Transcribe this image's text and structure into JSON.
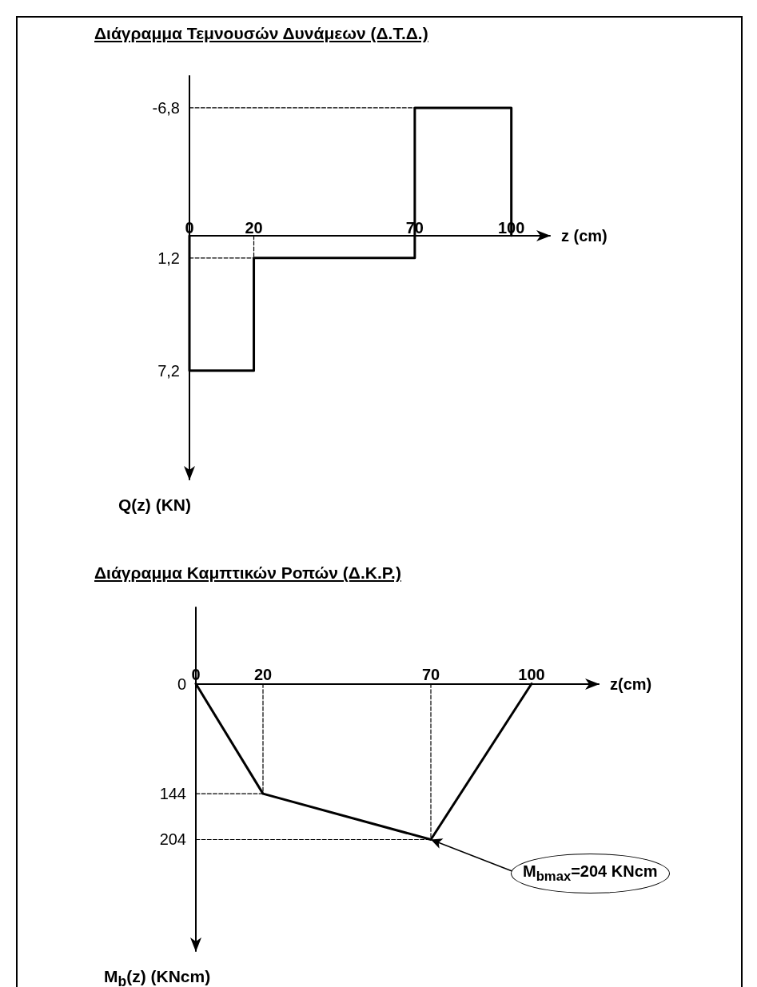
{
  "chart_data": [
    {
      "type": "line",
      "title": "Διάγραμμα Τεμνουσών Δυνάμεων (Δ.Τ.Δ.)",
      "xlabel": "z (cm)",
      "ylabel": "Q(z) (KN)",
      "marker": "none",
      "grid": false,
      "xlim": [
        0,
        112
      ],
      "xticks": [
        0,
        20,
        70,
        100
      ],
      "ylim": [
        13,
        -8.5
      ],
      "yticks": [
        {
          "value": -6.8,
          "label": "-6,8"
        },
        {
          "value": 1.2,
          "label": "1,2"
        },
        {
          "value": 7.2,
          "label": "7,2"
        }
      ],
      "series": [
        {
          "color": "#000000",
          "line_style": "solid",
          "x": [
            0,
            0,
            20,
            20,
            70,
            70,
            100,
            100
          ],
          "values": [
            0,
            7.2,
            7.2,
            1.2,
            1.2,
            -6.8,
            -6.8,
            0
          ]
        },
        {
          "color": "#000000",
          "line_style": "dashed",
          "x": [
            0,
            20
          ],
          "values": [
            1.2,
            1.2
          ]
        },
        {
          "color": "#000000",
          "line_style": "dashed",
          "x": [
            20,
            20
          ],
          "values": [
            0,
            1.2
          ]
        },
        {
          "color": "#000000",
          "line_style": "dashed",
          "x": [
            0,
            70
          ],
          "values": [
            -6.8,
            -6.8
          ]
        }
      ]
    },
    {
      "type": "line",
      "title": "Διάγραμμα Καμπτικών Ροπών (Δ.Κ.Ρ.)",
      "xlabel": "z(cm)",
      "ylabel": "M$_{b}$(z) (KNcm)",
      "marker": "none",
      "grid": false,
      "xlim": [
        0,
        120
      ],
      "xticks": [
        0,
        20,
        70,
        100
      ],
      "ylim": [
        350,
        -100
      ],
      "yticks": [
        0,
        144,
        204
      ],
      "annotations": [
        {
          "text": "M$_{bmax}$=204 KNcm",
          "x": 70,
          "y": 204
        }
      ],
      "series": [
        {
          "color": "#000000",
          "line_style": "solid",
          "x": [
            0,
            20,
            70,
            100
          ],
          "values": [
            0,
            144,
            204,
            0
          ]
        },
        {
          "color": "#000000",
          "line_style": "dashed",
          "x": [
            0,
            20
          ],
          "values": [
            144,
            144
          ]
        },
        {
          "color": "#000000",
          "line_style": "dashed",
          "x": [
            20,
            20
          ],
          "values": [
            0,
            144
          ]
        },
        {
          "color": "#000000",
          "line_style": "dashed",
          "x": [
            0,
            70
          ],
          "values": [
            204,
            204
          ]
        },
        {
          "color": "#000000",
          "line_style": "dashed",
          "x": [
            70,
            70
          ],
          "values": [
            0,
            204
          ]
        }
      ]
    }
  ]
}
